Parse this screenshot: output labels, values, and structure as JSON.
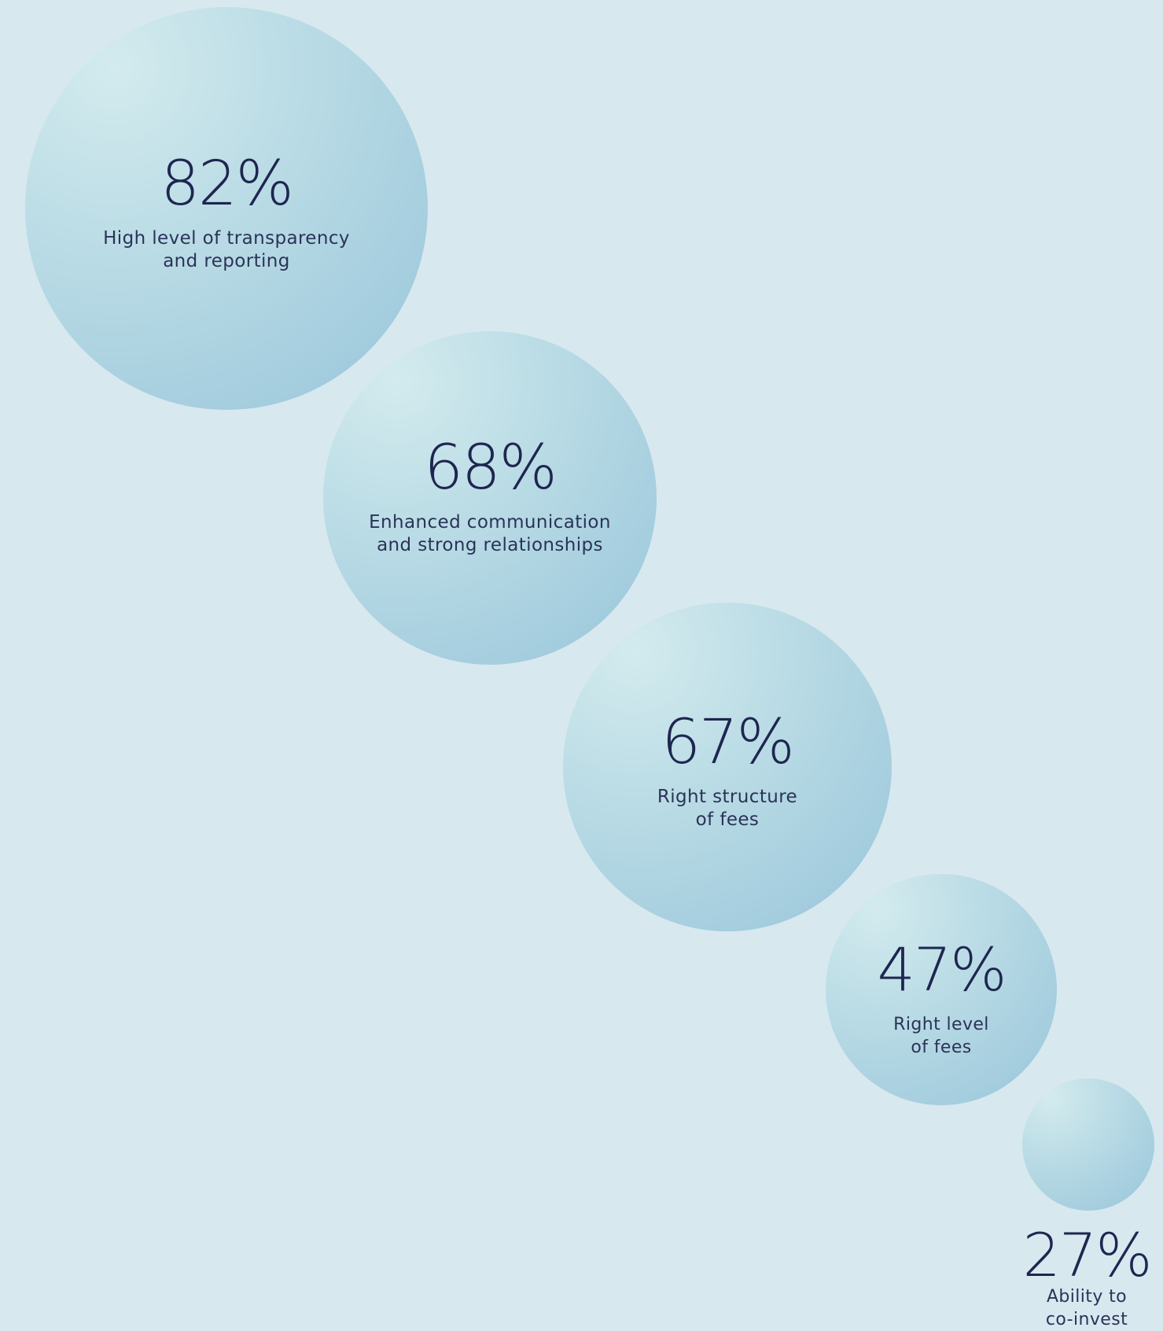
{
  "chart_data": {
    "type": "bubble",
    "unit": "%",
    "items": [
      {
        "value": 82,
        "value_label": "82%",
        "label_lines": [
          "High level of transparency",
          "and reporting"
        ]
      },
      {
        "value": 68,
        "value_label": "68%",
        "label_lines": [
          "Enhanced communication",
          "and strong relationships"
        ]
      },
      {
        "value": 67,
        "value_label": "67%",
        "label_lines": [
          "Right structure",
          "of fees"
        ]
      },
      {
        "value": 47,
        "value_label": "47%",
        "label_lines": [
          "Right level",
          "of fees"
        ]
      },
      {
        "value": 27,
        "value_label": "27%",
        "label_lines": [
          "Ability to",
          "co-invest"
        ]
      }
    ]
  },
  "colors": {
    "background": "#d8e8ef",
    "bubble_light": "#d3ebee",
    "bubble_dark": "#98c5da",
    "text": "#1e2650"
  }
}
